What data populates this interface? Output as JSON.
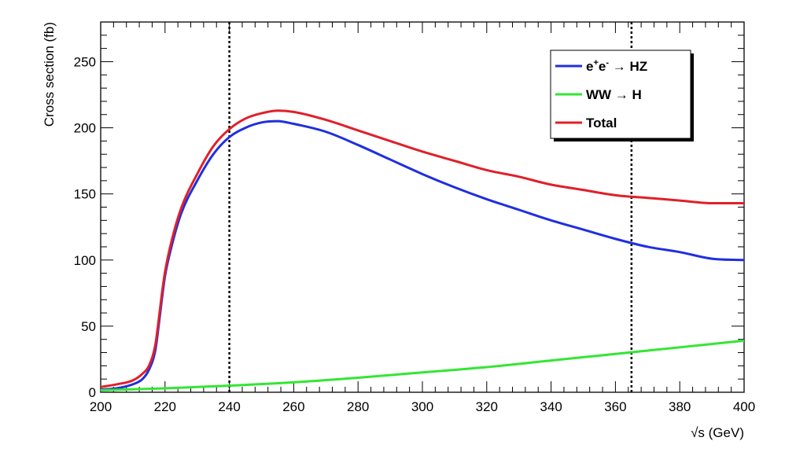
{
  "chart_data": {
    "type": "line",
    "xlabel": "√s (GeV)",
    "ylabel": "Cross section (fb)",
    "xlim": [
      200,
      400
    ],
    "ylim": [
      0,
      280
    ],
    "xticks": [
      "200",
      "220",
      "240",
      "260",
      "280",
      "300",
      "320",
      "340",
      "360",
      "380",
      "400"
    ],
    "yticks": [
      "0",
      "50",
      "100",
      "150",
      "200",
      "250"
    ],
    "vertical_lines": [
      240,
      365
    ],
    "legend_position": "top-right",
    "series": [
      {
        "name": "e⁺e⁻ → HZ",
        "legend": {
          "base1": "e",
          "sup1": "+",
          "base2": "e",
          "sup2": "-",
          "rest": " → HZ"
        },
        "color": "#1f2fe0",
        "x": [
          200,
          205,
          210,
          213,
          215,
          217,
          218,
          219,
          220,
          222,
          225,
          230,
          235,
          240,
          245,
          250,
          255,
          260,
          270,
          280,
          290,
          300,
          310,
          320,
          330,
          340,
          350,
          360,
          370,
          380,
          390,
          400
        ],
        "y": [
          2,
          3,
          6,
          10,
          17,
          32,
          50,
          70,
          88,
          110,
          135,
          160,
          180,
          193,
          200,
          204,
          205,
          203,
          197,
          187,
          176,
          165,
          155,
          146,
          138,
          130,
          123,
          116,
          110,
          106,
          101,
          100
        ]
      },
      {
        "name": "WW → H",
        "legend": {
          "rest": "WW → H"
        },
        "color": "#33e633",
        "x": [
          200,
          220,
          240,
          260,
          280,
          300,
          320,
          340,
          360,
          380,
          400
        ],
        "y": [
          1.5,
          3,
          5,
          7.5,
          11,
          15,
          19,
          24,
          29,
          34,
          39
        ]
      },
      {
        "name": "Total",
        "legend": {
          "rest": "Total"
        },
        "color": "#e0202a",
        "x": [
          200,
          205,
          210,
          213,
          215,
          217,
          218,
          219,
          220,
          222,
          225,
          230,
          235,
          240,
          245,
          250,
          255,
          260,
          270,
          280,
          290,
          300,
          310,
          320,
          330,
          340,
          350,
          360,
          370,
          380,
          390,
          400
        ],
        "y": [
          4,
          6,
          9,
          14,
          20,
          36,
          54,
          74,
          91,
          114,
          139,
          165,
          186,
          199,
          207,
          211,
          213,
          212,
          206,
          198,
          190,
          182,
          175,
          168,
          163,
          157,
          153,
          149,
          147,
          145,
          143,
          143
        ]
      }
    ]
  }
}
